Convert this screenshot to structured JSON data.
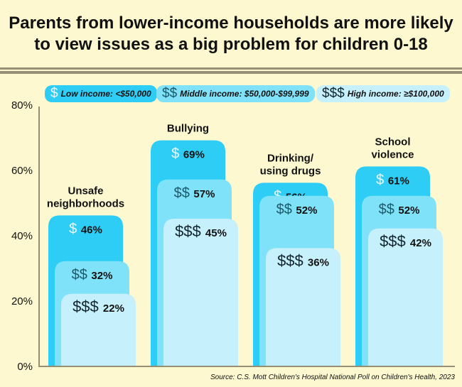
{
  "title": "Parents from lower-income households are more likely to view issues as a big problem for children 0-18",
  "source": "Source: C.S. Mott Children's Hospital National Poll on Children's Health, 2023",
  "colors": {
    "low": "#2ecdf5",
    "middle": "#80e2f8",
    "high": "#c6f0fb",
    "background": "#fdf8d0"
  },
  "legend": [
    {
      "symbol": "$",
      "label": "Low income: <$50,000"
    },
    {
      "symbol": "$$",
      "label": "Middle income: $50,000-$99,999"
    },
    {
      "symbol": "$$$",
      "label": "High income: ≥$100,000"
    }
  ],
  "chart_data": {
    "type": "bar",
    "categories": [
      [
        "Unsafe",
        "neighborhoods"
      ],
      [
        "Bullying"
      ],
      [
        "Drinking/",
        "using drugs"
      ],
      [
        "School",
        "violence"
      ]
    ],
    "series": [
      {
        "name": "Low income: <$50,000",
        "symbol": "$",
        "values": [
          46,
          69,
          56,
          61
        ]
      },
      {
        "name": "Middle income: $50,000-$99,999",
        "symbol": "$$",
        "values": [
          32,
          57,
          52,
          52
        ]
      },
      {
        "name": "High income: ≥$100,000",
        "symbol": "$$$",
        "values": [
          22,
          45,
          36,
          42
        ]
      }
    ],
    "yticks": [
      "0%",
      "20%",
      "40%",
      "60%",
      "80%"
    ],
    "ylim": [
      0,
      80
    ],
    "legend_placement": "top"
  }
}
